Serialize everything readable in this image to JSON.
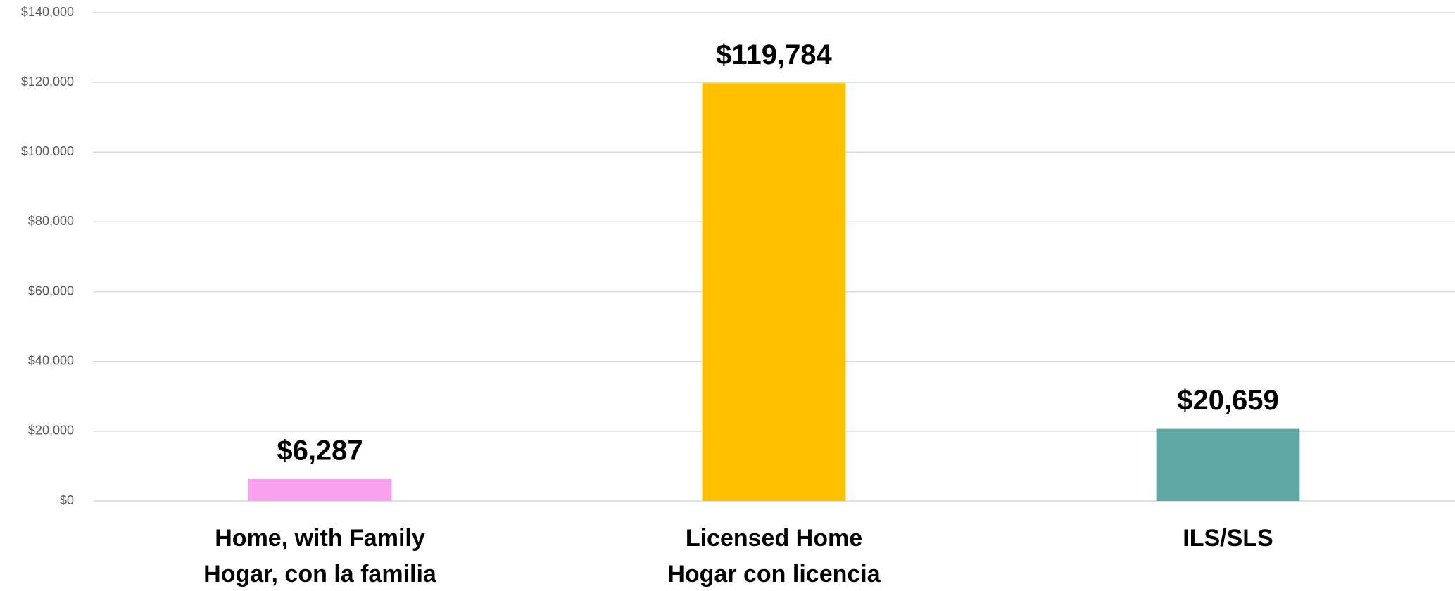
{
  "chart_data": {
    "type": "bar",
    "categories": [
      [
        "Home, with Family",
        "Hogar, con la familia"
      ],
      [
        "Licensed Home",
        "Hogar con licencia"
      ],
      [
        "ILS/SLS"
      ]
    ],
    "values": [
      6287,
      119784,
      20659
    ],
    "value_labels": [
      "$6,287",
      "$119,784",
      "$20,659"
    ],
    "colors": [
      "#f9a0ee",
      "#ffc000",
      "#5fa8a6"
    ],
    "ylim": [
      0,
      140000
    ],
    "yticks": [
      {
        "value": 0,
        "label": "$0"
      },
      {
        "value": 20000,
        "label": "$20,000"
      },
      {
        "value": 40000,
        "label": "$40,000"
      },
      {
        "value": 60000,
        "label": "$60,000"
      },
      {
        "value": 80000,
        "label": "$80,000"
      },
      {
        "value": 100000,
        "label": "$100,000"
      },
      {
        "value": 120000,
        "label": "$120,000"
      },
      {
        "value": 140000,
        "label": "$140,000"
      }
    ],
    "grid": true
  }
}
